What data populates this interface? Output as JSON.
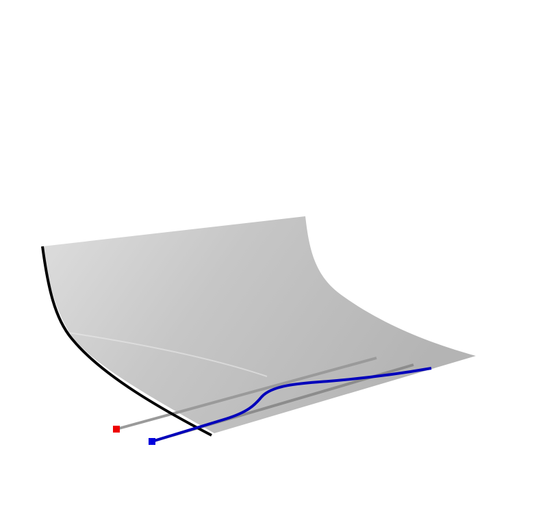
{
  "figure": {
    "type": "3d-surface-diagram",
    "labels": [],
    "colors": {
      "background": "#ffffff",
      "surface_light": "#dcdcdc",
      "surface_mid": "#c4c4c4",
      "surface_dark": "#b2b2b2",
      "boundary_curve": "#000000",
      "ridge_line_light": "#a8a8a8",
      "ridge_line_dark": "#8a8a8a",
      "path_curve": "#0000bb",
      "start_marker_red": "#ee0000",
      "start_marker_blue": "#0000dd"
    }
  }
}
